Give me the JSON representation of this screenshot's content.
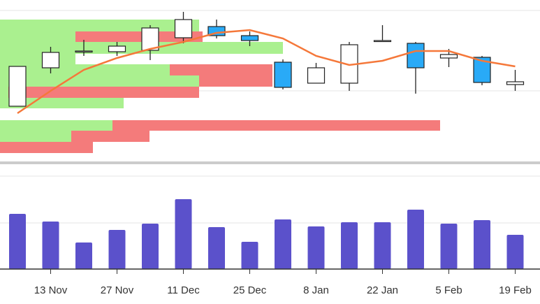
{
  "chart_data": {
    "type": "candlestick",
    "categories": [
      null,
      "13 Nov",
      null,
      "27 Nov",
      null,
      "11 Dec",
      null,
      "25 Dec",
      null,
      "8 Jan",
      null,
      "22 Jan",
      null,
      "5 Feb",
      null,
      "19 Feb"
    ],
    "open": [
      78,
      133,
      156,
      156,
      158,
      176,
      192,
      179,
      141,
      111,
      111,
      171,
      168,
      147,
      148,
      109
    ],
    "high": [
      135,
      163,
      173,
      170,
      194,
      213,
      202,
      185,
      145,
      140,
      170,
      194,
      170,
      160,
      150,
      130
    ],
    "low": [
      78,
      125,
      150,
      150,
      144,
      168,
      175,
      164,
      102,
      111,
      100,
      171,
      96,
      134,
      108,
      100
    ],
    "close": [
      135,
      155,
      157,
      164,
      190,
      202,
      179,
      172,
      105,
      133,
      166,
      172,
      133,
      152,
      112,
      113
    ],
    "up_color": "#ffffff",
    "down_color": "#29aaf7",
    "ylim": [
      0,
      230
    ],
    "ygrid": [
      100,
      215
    ],
    "moving_average": {
      "color": "#f5783a",
      "values": [
        68,
        100,
        130,
        147,
        160,
        170,
        183,
        187,
        175,
        150,
        137,
        143,
        157,
        157,
        143,
        135
      ]
    },
    "volume_profile": {
      "bins": [
        11,
        27,
        43,
        58,
        75,
        90,
        106,
        122,
        138,
        153,
        170,
        185,
        202
      ],
      "xlim": [
        0,
        773
      ],
      "series": [
        {
          "color": "#aaf08f",
          "values": [
            0,
            102,
            161,
            0,
            177,
            12,
            285,
            243,
            108,
            405,
            108,
            285
          ]
        },
        {
          "color": "#f47b7b",
          "values": [
            133,
            112,
            469,
            0,
            0,
            273,
            105,
            147,
            0,
            0,
            182,
            0
          ]
        }
      ]
    },
    "volume": {
      "color": "#5b51cb",
      "values": [
        79,
        68,
        38,
        56,
        65,
        100,
        60,
        39,
        71,
        61,
        67,
        67,
        85,
        65,
        70,
        49
      ],
      "ylim": [
        0,
        135
      ],
      "ygrid": [
        66,
        133
      ]
    }
  }
}
